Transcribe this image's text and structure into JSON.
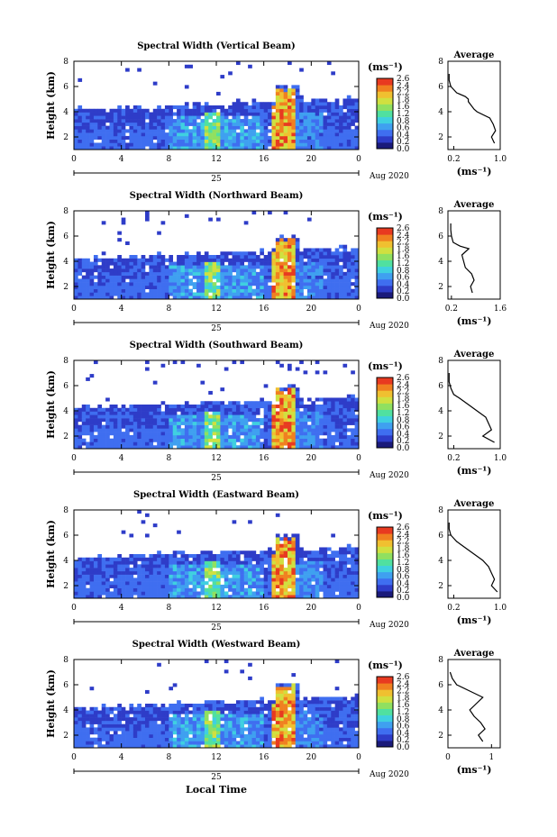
{
  "figure": {
    "xlabel": "Local Time",
    "day_label": "25",
    "date_label": "Aug 2020",
    "ylabel": "Height (km)",
    "unit_label": "(ms⁻¹)",
    "avg_title": "Average",
    "avg_xlabel": "(ms⁻¹)",
    "colorbar_ticks": [
      "2.6",
      "2.4",
      "2.2",
      "1.8",
      "1.6",
      "1.2",
      "0.8",
      "0.6",
      "0.4",
      "0.2",
      "0.0"
    ],
    "colors": [
      "#1a1a7a",
      "#2e3cc8",
      "#3f6ef0",
      "#3fa0f0",
      "#3fd0e0",
      "#50e0a0",
      "#90e060",
      "#d0e040",
      "#f0c030",
      "#f08020",
      "#e83a20"
    ]
  },
  "chart_data": [
    {
      "type": "heatmap",
      "title": "Spectral Width (Vertical Beam)",
      "x": {
        "label": "Local Time",
        "range": [
          0,
          24
        ],
        "ticks": [
          "0",
          "4",
          "8",
          "12",
          "16",
          "20",
          "0"
        ]
      },
      "y": {
        "label": "Height (km)",
        "range": [
          1,
          8
        ],
        "ticks": [
          "8",
          "6",
          "4",
          "2"
        ]
      },
      "colorbar": {
        "range": [
          0.0,
          2.6
        ],
        "unit": "(ms⁻¹)"
      },
      "profile": {
        "title": "Average",
        "xlim": [
          0.1,
          1.0
        ],
        "xticks": [
          "0.2",
          "1.0"
        ],
        "ylim": [
          1,
          8
        ],
        "yticks": [
          "8",
          "6",
          "4",
          "2"
        ],
        "height_km": [
          1.5,
          2.0,
          2.5,
          3.0,
          3.5,
          4.0,
          4.2,
          4.5,
          4.8,
          5.0,
          5.2,
          5.5,
          6.0,
          6.5,
          7.0
        ],
        "value": [
          0.9,
          0.85,
          0.92,
          0.88,
          0.82,
          0.6,
          0.55,
          0.5,
          0.45,
          0.45,
          0.4,
          0.25,
          0.15,
          0.12,
          0.12
        ]
      }
    },
    {
      "type": "heatmap",
      "title": "Spectral Width (Northward Beam)",
      "x": {
        "label": "Local Time",
        "range": [
          0,
          24
        ],
        "ticks": [
          "0",
          "4",
          "8",
          "12",
          "16",
          "20",
          "0"
        ]
      },
      "y": {
        "label": "Height (km)",
        "range": [
          1,
          8
        ],
        "ticks": [
          "8",
          "6",
          "4",
          "2"
        ]
      },
      "colorbar": {
        "range": [
          0.0,
          2.6
        ],
        "unit": "(ms⁻¹)"
      },
      "profile": {
        "title": "Average",
        "xlim": [
          0.1,
          1.6
        ],
        "xticks": [
          "0.2",
          "1.6"
        ],
        "ylim": [
          1,
          8
        ],
        "yticks": [
          "8",
          "6",
          "4",
          "2"
        ],
        "height_km": [
          1.5,
          2.0,
          2.5,
          3.0,
          3.5,
          4.0,
          4.5,
          5.0,
          5.2,
          5.5,
          6.0,
          6.5,
          7.0
        ],
        "value": [
          0.8,
          0.75,
          0.85,
          0.78,
          0.6,
          0.55,
          0.5,
          0.7,
          0.45,
          0.25,
          0.2,
          0.18,
          0.18
        ]
      }
    },
    {
      "type": "heatmap",
      "title": "Spectral Width (Southward Beam)",
      "x": {
        "label": "Local Time",
        "range": [
          0,
          24
        ],
        "ticks": [
          "0",
          "4",
          "8",
          "12",
          "16",
          "20",
          "0"
        ]
      },
      "y": {
        "label": "Height (km)",
        "range": [
          1,
          8
        ],
        "ticks": [
          "8",
          "6",
          "4",
          "2"
        ]
      },
      "colorbar": {
        "range": [
          0.0,
          2.6
        ],
        "unit": "(ms⁻¹)"
      },
      "profile": {
        "title": "Average",
        "xlim": [
          0.1,
          1.0
        ],
        "xticks": [
          "0.2",
          "1.0"
        ],
        "ylim": [
          1,
          8
        ],
        "yticks": [
          "8",
          "6",
          "4",
          "2"
        ],
        "height_km": [
          1.5,
          2.0,
          2.5,
          3.0,
          3.5,
          4.0,
          4.5,
          5.0,
          5.3,
          5.8,
          6.3,
          7.0
        ],
        "value": [
          0.9,
          0.7,
          0.85,
          0.8,
          0.75,
          0.6,
          0.45,
          0.3,
          0.2,
          0.15,
          0.12,
          0.12
        ]
      }
    },
    {
      "type": "heatmap",
      "title": "Spectral Width (Eastward Beam)",
      "x": {
        "label": "Local Time",
        "range": [
          0,
          24
        ],
        "ticks": [
          "0",
          "4",
          "8",
          "12",
          "16",
          "20",
          "0"
        ]
      },
      "y": {
        "label": "Height (km)",
        "range": [
          1,
          8
        ],
        "ticks": [
          "8",
          "6",
          "4",
          "2"
        ]
      },
      "colorbar": {
        "range": [
          0.0,
          2.6
        ],
        "unit": "(ms⁻¹)"
      },
      "profile": {
        "title": "Average",
        "xlim": [
          0.1,
          1.0
        ],
        "xticks": [
          "0.2",
          "1.0"
        ],
        "ylim": [
          1,
          8
        ],
        "yticks": [
          "8",
          "6",
          "4",
          "2"
        ],
        "height_km": [
          1.5,
          2.0,
          2.5,
          3.0,
          3.5,
          4.0,
          4.5,
          5.0,
          5.5,
          6.0,
          6.5,
          7.0
        ],
        "value": [
          0.95,
          0.85,
          0.9,
          0.85,
          0.8,
          0.7,
          0.55,
          0.4,
          0.25,
          0.15,
          0.12,
          0.12
        ]
      }
    },
    {
      "type": "heatmap",
      "title": "Spectral Width (Westward Beam)",
      "x": {
        "label": "Local Time",
        "range": [
          0,
          24
        ],
        "ticks": [
          "0",
          "4",
          "8",
          "12",
          "16",
          "20",
          "0"
        ]
      },
      "y": {
        "label": "Height (km)",
        "range": [
          1,
          8
        ],
        "ticks": [
          "8",
          "6",
          "4",
          "2"
        ]
      },
      "colorbar": {
        "range": [
          0.0,
          2.6
        ],
        "unit": "(ms⁻¹)"
      },
      "profile": {
        "title": "Average",
        "xlim": [
          0.0,
          1.2
        ],
        "xticks": [
          "0",
          "1"
        ],
        "ylim": [
          1,
          8
        ],
        "yticks": [
          "8",
          "6",
          "4",
          "2"
        ],
        "height_km": [
          1.5,
          2.0,
          2.5,
          3.0,
          3.5,
          4.0,
          4.5,
          5.0,
          5.5,
          6.0,
          6.5,
          7.0
        ],
        "value": [
          0.8,
          0.7,
          0.85,
          0.75,
          0.6,
          0.5,
          0.65,
          0.8,
          0.5,
          0.2,
          0.1,
          0.05
        ]
      }
    }
  ]
}
